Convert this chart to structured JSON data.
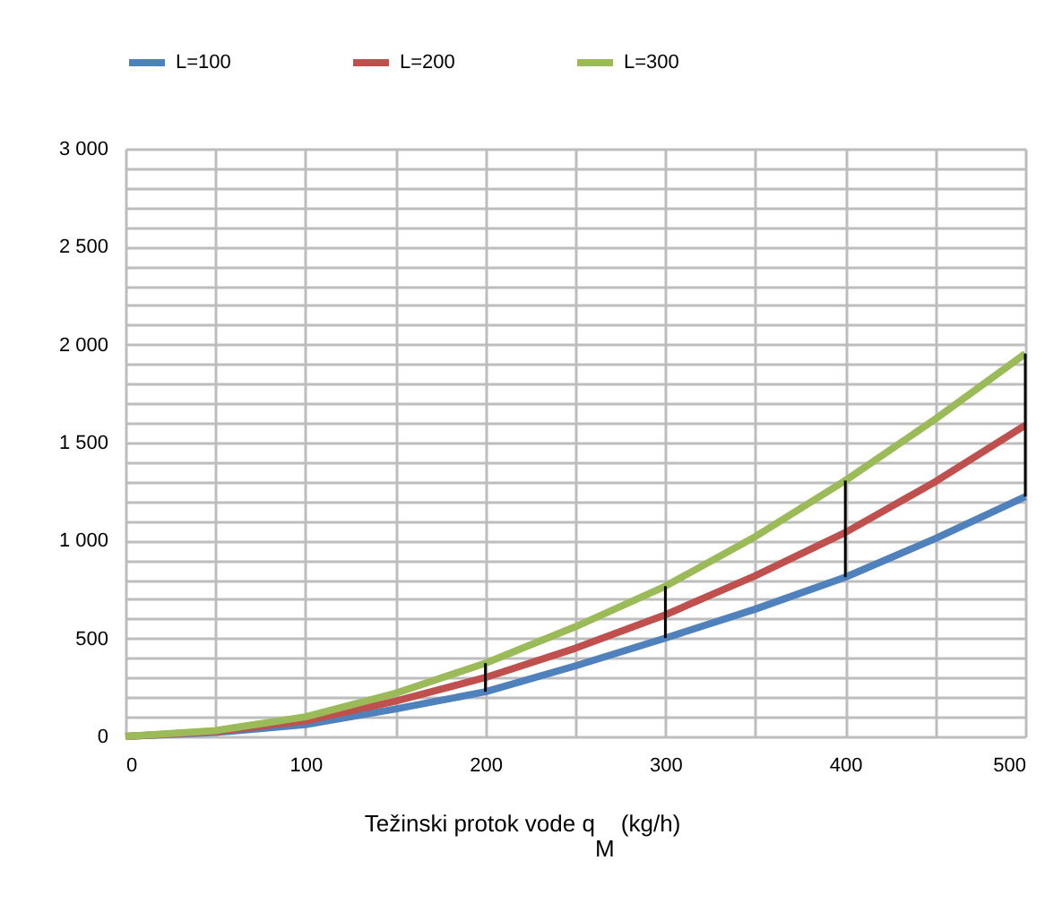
{
  "chart_data": {
    "type": "line",
    "xlabel": "Težinski protok vode q$_{M}$ (kg/h)",
    "x": [
      0,
      50,
      100,
      150,
      200,
      250,
      300,
      350,
      400,
      450,
      500
    ],
    "series": [
      {
        "name": "L=100",
        "color": "#4f81bd",
        "values": [
          0,
          20,
          60,
          140,
          228,
          360,
          502,
          650,
          813,
          1010,
          1224
        ]
      },
      {
        "name": "L=200",
        "color": "#c0504d",
        "values": [
          0,
          25,
          80,
          180,
          301,
          450,
          621,
          820,
          1041,
          1300,
          1589
        ],
        "errors": [
          null,
          null,
          null,
          null,
          [
            228,
            374
          ],
          null,
          [
            502,
            767
          ],
          null,
          [
            813,
            1306
          ],
          null,
          [
            1224,
            1954
          ]
        ]
      },
      {
        "name": "L=300",
        "color": "#9bbb59",
        "values": [
          0,
          30,
          100,
          220,
          374,
          560,
          767,
          1020,
          1306,
          1620,
          1954
        ]
      }
    ],
    "xlim": [
      0,
      500
    ],
    "xticks": [
      0,
      {
        "value": 50,
        "label": null
      },
      100,
      {
        "value": 150,
        "label": null
      },
      200,
      {
        "value": 250,
        "label": null
      },
      300,
      {
        "value": 350,
        "label": null
      },
      400,
      {
        "value": 450,
        "label": null
      },
      500
    ],
    "ylim": [
      0,
      3000
    ],
    "yticks": [
      0,
      {
        "value": 100,
        "label": null
      },
      {
        "value": 200,
        "label": null
      },
      {
        "value": 300,
        "label": null
      },
      {
        "value": 400,
        "label": null
      },
      500,
      {
        "value": 600,
        "label": null
      },
      {
        "value": 700,
        "label": null
      },
      {
        "value": 800,
        "label": null
      },
      {
        "value": 900,
        "label": null
      },
      {
        "value": 1000,
        "label": "1 000"
      },
      {
        "value": 1100,
        "label": null
      },
      {
        "value": 1200,
        "label": null
      },
      {
        "value": 1300,
        "label": null
      },
      {
        "value": 1400,
        "label": null
      },
      {
        "value": 1500,
        "label": "1 500"
      },
      {
        "value": 1600,
        "label": null
      },
      {
        "value": 1700,
        "label": null
      },
      {
        "value": 1800,
        "label": null
      },
      {
        "value": 1900,
        "label": null
      },
      {
        "value": 2000,
        "label": "2 000"
      },
      {
        "value": 2100,
        "label": null
      },
      {
        "value": 2200,
        "label": null
      },
      {
        "value": 2300,
        "label": null
      },
      {
        "value": 2400,
        "label": null
      },
      {
        "value": 2500,
        "label": "2 500"
      },
      {
        "value": 2600,
        "label": null
      },
      {
        "value": 2700,
        "label": null
      },
      {
        "value": 2800,
        "label": null
      },
      {
        "value": 2900,
        "label": null
      },
      {
        "value": 3000,
        "label": "3 000"
      }
    ],
    "grid": true,
    "legend": "top",
    "marker": "none",
    "line_style": "solid"
  }
}
